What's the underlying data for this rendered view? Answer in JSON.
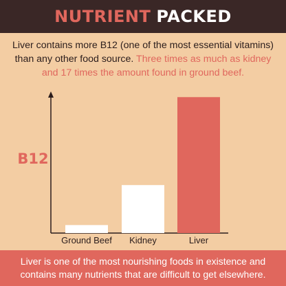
{
  "header": {
    "title_part1": "NUTRIENT",
    "title_part2": "PACKED"
  },
  "intro": {
    "text": "Liver contains more B12 (one of the most essential vitamins) than any other food source.",
    "highlight": "Three times as much as kidney and 17 times the amount found in ground beef."
  },
  "footer": {
    "text": "Liver is one of the most nourishing foods in existence and contains many nutrients that are difficult to get elsewhere."
  },
  "colors": {
    "background": "#f3cda3",
    "header_bg": "#3a2726",
    "accent": "#e0675d",
    "bar_light": "#ffffff",
    "axis": "#2b1d1c"
  },
  "chart_data": {
    "type": "bar",
    "categories": [
      "Ground Beef",
      "Kidney",
      "Liver"
    ],
    "values": [
      1,
      6,
      17
    ],
    "bar_colors": [
      "#ffffff",
      "#ffffff",
      "#e0675d"
    ],
    "ylabel": "B12",
    "ylim": [
      0,
      19
    ],
    "grid": false
  }
}
